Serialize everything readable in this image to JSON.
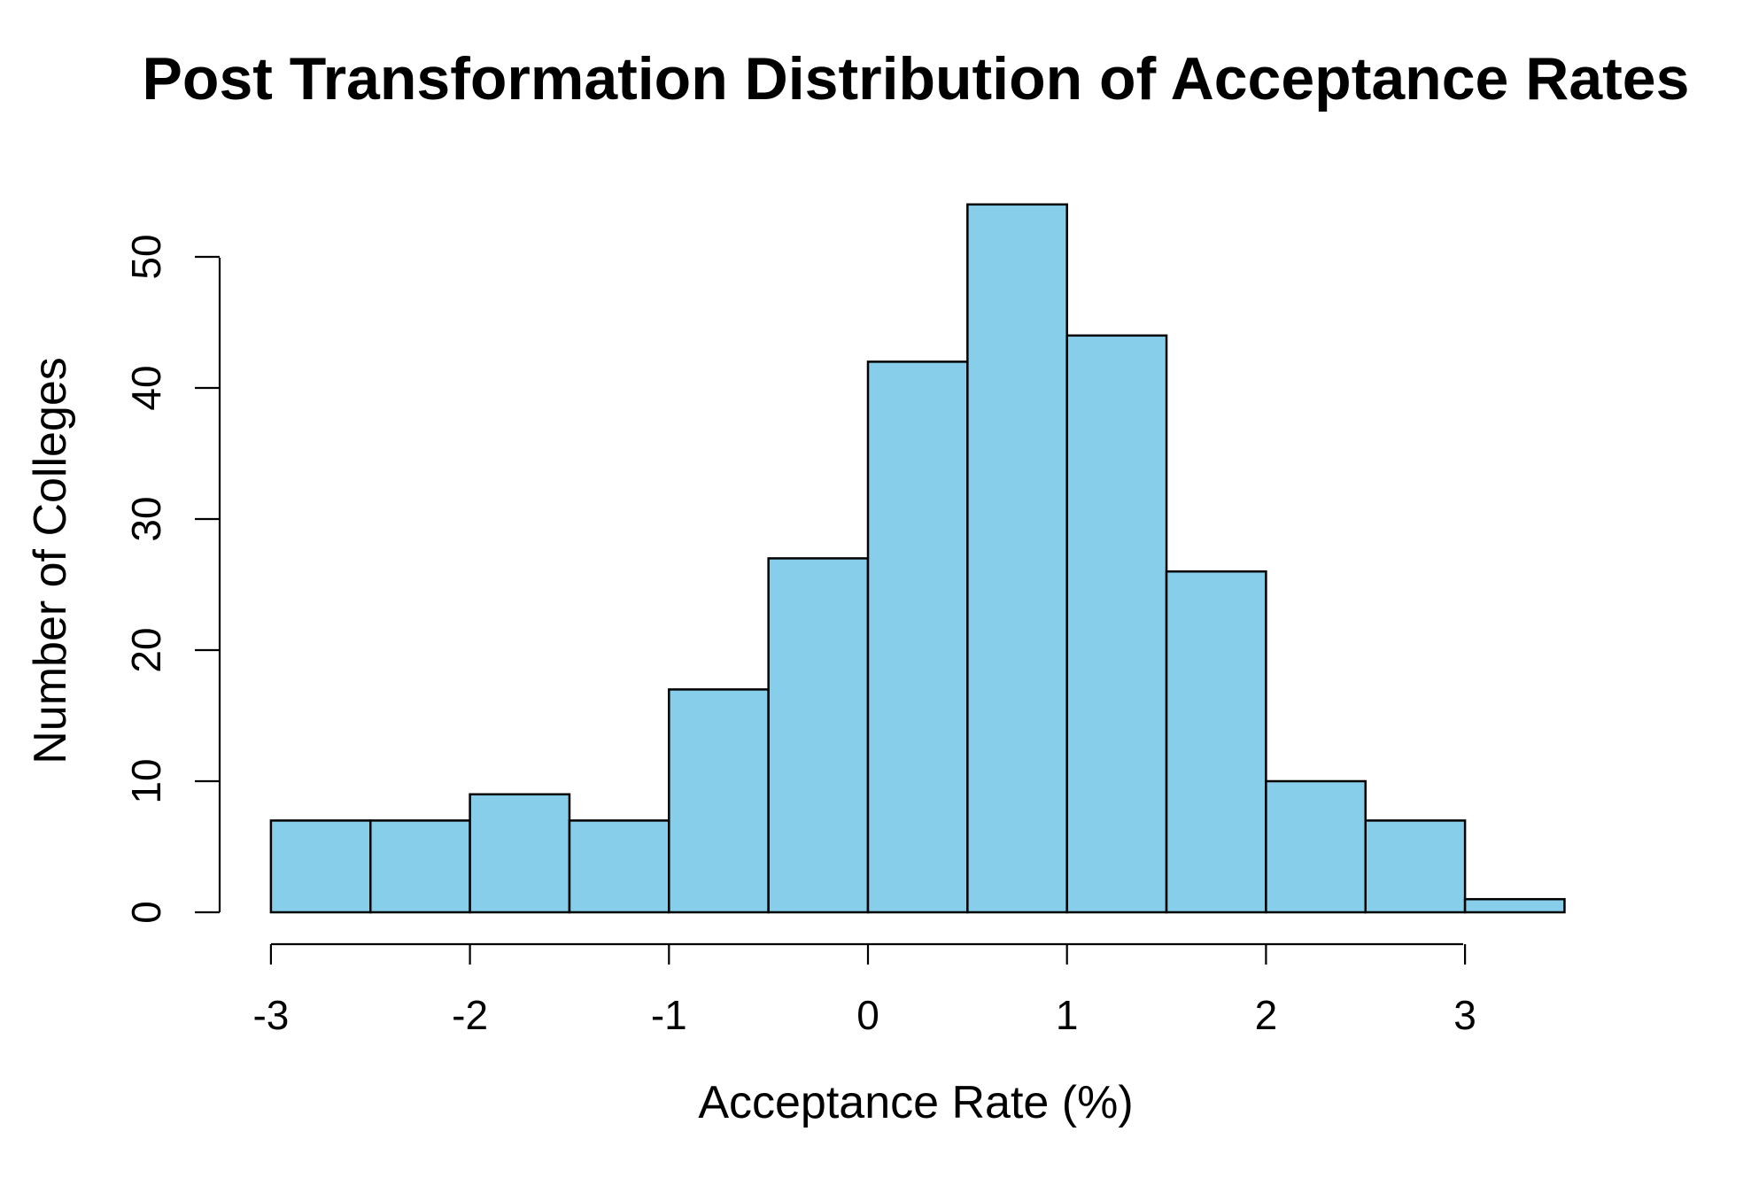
{
  "chart_data": {
    "type": "bar",
    "title": "Post Transformation Distribution of Acceptance Rates",
    "xlabel": "Acceptance Rate (%)",
    "ylabel": "Number of Colleges",
    "bin_edges": [
      -3,
      -2.5,
      -2,
      -1.5,
      -1,
      -0.5,
      0,
      0.5,
      1,
      1.5,
      2,
      2.5,
      3,
      3.5
    ],
    "values": [
      7,
      7,
      9,
      7,
      17,
      27,
      42,
      54,
      44,
      26,
      10,
      7,
      1
    ],
    "xticks": [
      -3,
      -2,
      -1,
      0,
      1,
      2,
      3
    ],
    "xtick_labels": [
      "-3",
      "-2",
      "-1",
      "0",
      "1",
      "2",
      "3"
    ],
    "yticks": [
      0,
      10,
      20,
      30,
      40,
      50
    ],
    "ytick_labels": [
      "0",
      "10",
      "20",
      "30",
      "40",
      "50"
    ],
    "xaxis_range": [
      -3,
      3
    ],
    "ylim": [
      0,
      50
    ],
    "bar_color": "#87CEEB",
    "edge_color": "#000000",
    "grid": false,
    "legend": "none"
  }
}
